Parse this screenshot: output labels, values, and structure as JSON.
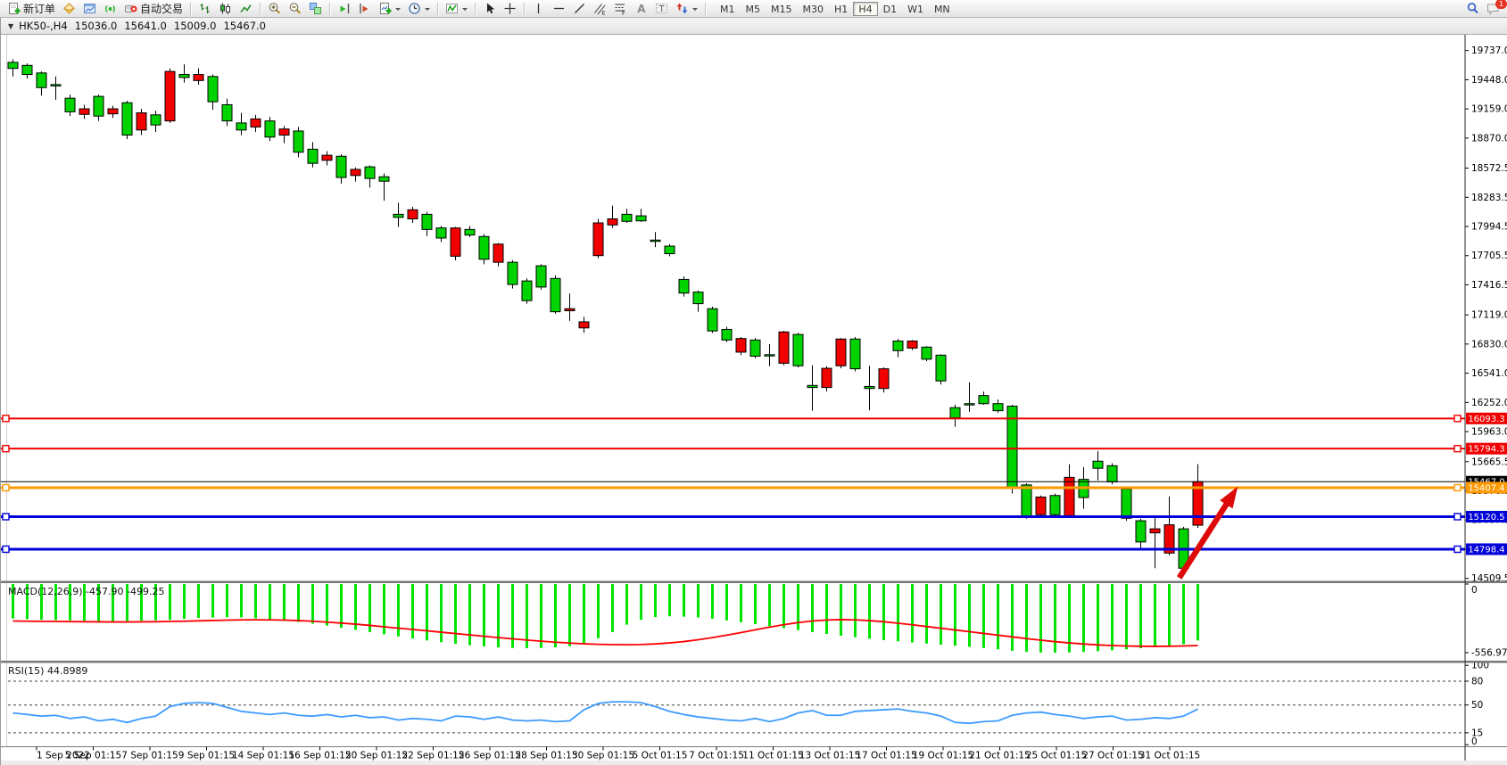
{
  "toolbar": {
    "new_order_label": "新订单",
    "autotrade_label": "自动交易",
    "timeframes": [
      "M1",
      "M5",
      "M15",
      "M30",
      "H1",
      "H4",
      "D1",
      "W1",
      "MN"
    ],
    "active_timeframe": "H4",
    "chat_badge": "1",
    "icon_names": [
      "new-order-icon",
      "profile-icon",
      "chart-window-icon",
      "signals-icon",
      "autotrade-icon",
      "bar-chart-icon",
      "candlestick-chart-icon",
      "line-chart-icon",
      "zoom-in-icon",
      "zoom-out-icon",
      "tile-windows-icon",
      "scroll-to-end-icon",
      "chart-shift-icon",
      "new-chart-icon",
      "period-clock-icon",
      "indicators-icon",
      "cursor-icon",
      "crosshair-icon",
      "vertical-line-icon",
      "horizontal-line-icon",
      "trendline-icon",
      "equidistant-channel-icon",
      "fibonacci-icon",
      "text-icon",
      "text-label-icon",
      "arrow-objects-icon",
      "search-icon",
      "chat-icon"
    ]
  },
  "chart_header": {
    "symbol": "HK50-,H4",
    "open": "15036.0",
    "high": "15641.0",
    "low": "15009.0",
    "close": "15467.0"
  },
  "chart_data": [
    {
      "type": "candlestick",
      "symbol": "HK50",
      "timeframe": "H4",
      "ylim": [
        14383,
        20061
      ],
      "bull_color": "#f20000",
      "bear_color": "#00d400",
      "wick_color": "#000000",
      "grid": false,
      "candles": [
        [
          19620,
          19650,
          19480,
          19560
        ],
        [
          19590,
          19610,
          19460,
          19500
        ],
        [
          19515,
          19530,
          19290,
          19370
        ],
        [
          19400,
          19480,
          19250,
          19390
        ],
        [
          19265,
          19300,
          19090,
          19130
        ],
        [
          19105,
          19200,
          19060,
          19160
        ],
        [
          19283,
          19300,
          19040,
          19088
        ],
        [
          19110,
          19190,
          19070,
          19160
        ],
        [
          19220,
          19240,
          18860,
          18900
        ],
        [
          18950,
          19160,
          18900,
          19120
        ],
        [
          19100,
          19140,
          18930,
          19000
        ],
        [
          19040,
          19560,
          19020,
          19530
        ],
        [
          19500,
          19600,
          19420,
          19470
        ],
        [
          19440,
          19560,
          19400,
          19500
        ],
        [
          19480,
          19500,
          19150,
          19230
        ],
        [
          19200,
          19260,
          18990,
          19040
        ],
        [
          19020,
          19120,
          18900,
          18950
        ],
        [
          18980,
          19100,
          18930,
          19060
        ],
        [
          19040,
          19080,
          18840,
          18880
        ],
        [
          18900,
          18990,
          18820,
          18960
        ],
        [
          18940,
          18980,
          18680,
          18730
        ],
        [
          18760,
          18830,
          18580,
          18620
        ],
        [
          18650,
          18740,
          18600,
          18700
        ],
        [
          18690,
          18710,
          18420,
          18480
        ],
        [
          18500,
          18580,
          18440,
          18560
        ],
        [
          18585,
          18600,
          18380,
          18470
        ],
        [
          18487,
          18520,
          18250,
          18443
        ],
        [
          18115,
          18230,
          17990,
          18085
        ],
        [
          18070,
          18190,
          18030,
          18160
        ],
        [
          18115,
          18140,
          17900,
          17965
        ],
        [
          17980,
          18000,
          17840,
          17880
        ],
        [
          17700,
          17990,
          17660,
          17980
        ],
        [
          17965,
          18000,
          17890,
          17910
        ],
        [
          17895,
          17920,
          17620,
          17670
        ],
        [
          17640,
          17830,
          17600,
          17820
        ],
        [
          17640,
          17660,
          17380,
          17420
        ],
        [
          17455,
          17480,
          17230,
          17260
        ],
        [
          17605,
          17620,
          17370,
          17395
        ],
        [
          17480,
          17510,
          17130,
          17150
        ],
        [
          17160,
          17330,
          17060,
          17180
        ],
        [
          16990,
          17100,
          16940,
          17050
        ],
        [
          17706,
          18070,
          17680,
          18030
        ],
        [
          18010,
          18200,
          17980,
          18070
        ],
        [
          18115,
          18170,
          18030,
          18045
        ],
        [
          18100,
          18170,
          18040,
          18050
        ],
        [
          17860,
          17940,
          17790,
          17855
        ],
        [
          17800,
          17820,
          17700,
          17725
        ],
        [
          17470,
          17500,
          17300,
          17335
        ],
        [
          17345,
          17360,
          17150,
          17230
        ],
        [
          17180,
          17200,
          16940,
          16960
        ],
        [
          16975,
          17000,
          16850,
          16870
        ],
        [
          16750,
          16900,
          16720,
          16885
        ],
        [
          16870,
          16890,
          16690,
          16710
        ],
        [
          16725,
          16830,
          16610,
          16720
        ],
        [
          16640,
          16960,
          16620,
          16950
        ],
        [
          16925,
          16940,
          16600,
          16615
        ],
        [
          16420,
          16620,
          16170,
          16400
        ],
        [
          16400,
          16610,
          16360,
          16590
        ],
        [
          16615,
          16890,
          16590,
          16880
        ],
        [
          16880,
          16900,
          16560,
          16585
        ],
        [
          16410,
          16615,
          16175,
          16390
        ],
        [
          16390,
          16600,
          16350,
          16585
        ],
        [
          16860,
          16880,
          16700,
          16765
        ],
        [
          16790,
          16870,
          16770,
          16860
        ],
        [
          16800,
          16810,
          16660,
          16680
        ],
        [
          16720,
          16730,
          16430,
          16465
        ],
        [
          16200,
          16230,
          16010,
          16100
        ],
        [
          16240,
          16450,
          16160,
          16235
        ],
        [
          16320,
          16360,
          16230,
          16240
        ],
        [
          16240,
          16280,
          16150,
          16170
        ],
        [
          16215,
          16230,
          15350,
          15405
        ],
        [
          15435,
          15450,
          15100,
          15125
        ],
        [
          15140,
          15330,
          15120,
          15315
        ],
        [
          15330,
          15350,
          15130,
          15140
        ],
        [
          15130,
          15640,
          15110,
          15510
        ],
        [
          15490,
          15610,
          15200,
          15310
        ],
        [
          15670,
          15770,
          15480,
          15600
        ],
        [
          15625,
          15650,
          15440,
          15465
        ],
        [
          15395,
          15420,
          15080,
          15105
        ],
        [
          15080,
          15100,
          14790,
          14870
        ],
        [
          14960,
          15110,
          14610,
          15000
        ],
        [
          14760,
          15320,
          14740,
          15040
        ],
        [
          15000,
          15020,
          14550,
          14610
        ],
        [
          15036,
          15641,
          15009,
          15467
        ]
      ],
      "y_ticks": [
        {
          "label": "19737.0",
          "price": 19737.0
        },
        {
          "label": "19448.0",
          "price": 19448.0
        },
        {
          "label": "19159.0",
          "price": 19159.0
        },
        {
          "label": "18870.0",
          "price": 18870.0
        },
        {
          "label": "18572.5",
          "price": 18572.5
        },
        {
          "label": "18283.5",
          "price": 18283.5
        },
        {
          "label": "17994.5",
          "price": 17994.5
        },
        {
          "label": "17705.5",
          "price": 17705.5
        },
        {
          "label": "17416.5",
          "price": 17416.5
        },
        {
          "label": "17119.0",
          "price": 17119.0
        },
        {
          "label": "16830.0",
          "price": 16830.0
        },
        {
          "label": "16541.0",
          "price": 16541.0
        },
        {
          "label": "16252.0",
          "price": 16252.0
        },
        {
          "label": "15963.0",
          "price": 15963.0
        },
        {
          "label": "15665.5",
          "price": 15665.5
        },
        {
          "label": "15376.5",
          "price": 15376.5
        },
        {
          "label": "15087.5",
          "price": 15087.5
        },
        {
          "label": "14798.5",
          "price": 14798.5
        },
        {
          "label": "14509.5",
          "price": 14509.5
        }
      ],
      "price_lines": [
        {
          "label": "16093.3",
          "price": 16093.3,
          "color": "#f00000",
          "width": 2,
          "current": false
        },
        {
          "label": "15794.3",
          "price": 15794.3,
          "color": "#f00000",
          "width": 2,
          "current": false
        },
        {
          "label": "15467.0",
          "price": 15467.0,
          "color": "#000000",
          "width": 1,
          "current": true
        },
        {
          "label": "15407.4",
          "price": 15407.4,
          "color": "#ff9900",
          "width": 3,
          "current": false
        },
        {
          "label": "15120.5",
          "price": 15120.5,
          "color": "#0000d8",
          "width": 3,
          "current": false
        },
        {
          "label": "14798.4",
          "price": 14798.4,
          "color": "#0000d8",
          "width": 3,
          "current": false
        }
      ],
      "x_labels": [
        "1 Sep 2022",
        "5 Sep 01:15",
        "7 Sep 01:15",
        "9 Sep 01:15",
        "14 Sep 01:15",
        "16 Sep 01:15",
        "20 Sep 01:15",
        "22 Sep 01:15",
        "26 Sep 01:15",
        "28 Sep 01:15",
        "30 Sep 01:15",
        "5 Oct 01:15",
        "7 Oct 01:15",
        "11 Oct 01:15",
        "13 Oct 01:15",
        "17 Oct 01:15",
        "19 Oct 01:15",
        "21 Oct 01:15",
        "25 Oct 01:15",
        "27 Oct 01:15",
        "31 Oct 01:15"
      ],
      "annotation_arrow": {
        "from": {
          "bar": 81.7,
          "price": 14515
        },
        "to": {
          "bar": 85.8,
          "price": 15420
        },
        "color": "#dd0808"
      }
    },
    {
      "type": "bar",
      "name": "MACD",
      "label": "MACD(12,26,9) -457.90 -499.25",
      "params": [
        12,
        26,
        9
      ],
      "value": -457.9,
      "signal_value": -499.25,
      "ylim": [
        -620,
        55
      ],
      "axis_labels": [
        "0",
        "-556.97"
      ],
      "axis_values": [
        0,
        -556.97
      ],
      "hist_color": "#00e400",
      "signal_color": "#ff0000",
      "histogram": [
        -280,
        -285,
        -290,
        -292,
        -295,
        -298,
        -300,
        -302,
        -300,
        -298,
        -295,
        -290,
        -282,
        -276,
        -272,
        -270,
        -272,
        -278,
        -286,
        -296,
        -308,
        -322,
        -338,
        -355,
        -372,
        -390,
        -408,
        -425,
        -442,
        -458,
        -472,
        -485,
        -496,
        -506,
        -514,
        -519,
        -521,
        -519,
        -514,
        -505,
        -480,
        -440,
        -390,
        -330,
        -290,
        -268,
        -262,
        -265,
        -272,
        -282,
        -295,
        -310,
        -326,
        -342,
        -358,
        -374,
        -390,
        -405,
        -419,
        -432,
        -444,
        -455,
        -465,
        -474,
        -483,
        -492,
        -501,
        -510,
        -519,
        -530,
        -542,
        -551,
        -556,
        -557,
        -555,
        -551,
        -545,
        -538,
        -530,
        -521,
        -511,
        -500,
        -488,
        -458
      ],
      "signal_line": [
        -300,
        -302,
        -303,
        -304,
        -305,
        -306,
        -307,
        -308,
        -308,
        -307,
        -306,
        -304,
        -302,
        -299,
        -296,
        -293,
        -291,
        -290,
        -291,
        -293,
        -297,
        -302,
        -309,
        -317,
        -326,
        -336,
        -347,
        -358,
        -369,
        -380,
        -391,
        -402,
        -413,
        -424,
        -435,
        -445,
        -455,
        -464,
        -472,
        -479,
        -485,
        -489,
        -492,
        -493,
        -491,
        -486,
        -478,
        -467,
        -452,
        -435,
        -415,
        -394,
        -372,
        -350,
        -330,
        -313,
        -300,
        -292,
        -289,
        -291,
        -297,
        -306,
        -318,
        -331,
        -345,
        -359,
        -373,
        -387,
        -401,
        -415,
        -429,
        -443,
        -456,
        -468,
        -478,
        -487,
        -494,
        -499,
        -503,
        -505,
        -506,
        -505,
        -503,
        -499
      ]
    },
    {
      "type": "line",
      "name": "RSI",
      "label": "RSI(15) 44.8989",
      "period": 15,
      "value": 44.8989,
      "levels": [
        80,
        50,
        15
      ],
      "axis_values": [
        100,
        80,
        50,
        15,
        0
      ],
      "axis_labels": [
        "100",
        "80",
        "50",
        "15",
        "0"
      ],
      "color": "#3e9bff",
      "ylim": [
        0,
        100
      ],
      "series": [
        40,
        38,
        36,
        37,
        33,
        35,
        30,
        32,
        28,
        33,
        36,
        48,
        52,
        53,
        52,
        47,
        42,
        40,
        38,
        40,
        37,
        36,
        38,
        35,
        37,
        34,
        35,
        31,
        33,
        32,
        30,
        36,
        35,
        32,
        35,
        31,
        30,
        31,
        29,
        30,
        44,
        52,
        54,
        54,
        53,
        48,
        42,
        38,
        35,
        33,
        31,
        30,
        33,
        29,
        33,
        40,
        43,
        37,
        37,
        42,
        43,
        44,
        45,
        42,
        40,
        36,
        28,
        27,
        29,
        30,
        37,
        40,
        41,
        38,
        36,
        33,
        35,
        36,
        31,
        32,
        34,
        33,
        36,
        44.9
      ]
    }
  ]
}
